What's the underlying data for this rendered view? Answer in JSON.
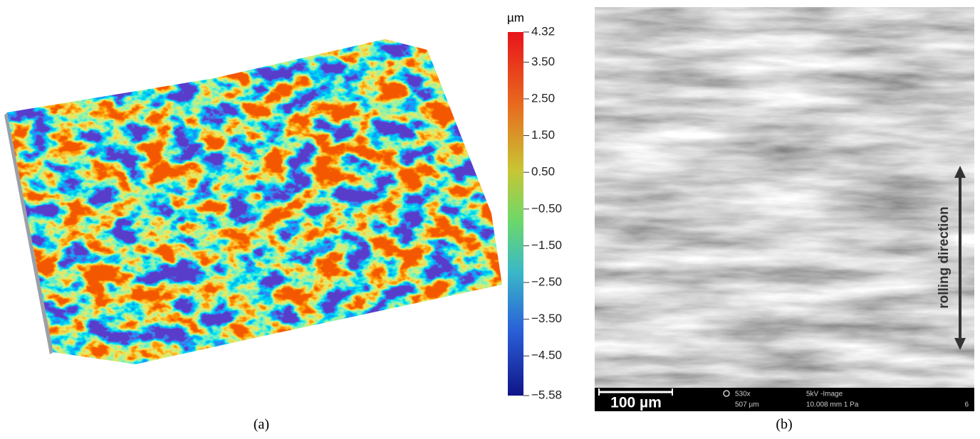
{
  "panel_a": {
    "colorbar": {
      "unit": "µm",
      "range": [
        -5.58,
        4.32
      ],
      "ticks": [
        {
          "value": 4.32,
          "label": "4.32"
        },
        {
          "value": 3.5,
          "label": "3.50"
        },
        {
          "value": 2.5,
          "label": "2.50"
        },
        {
          "value": 1.5,
          "label": "1.50"
        },
        {
          "value": 0.5,
          "label": "0.50"
        },
        {
          "value": -0.5,
          "label": "−0.50"
        },
        {
          "value": -1.5,
          "label": "−1.50"
        },
        {
          "value": -2.5,
          "label": "−2.50"
        },
        {
          "value": -3.5,
          "label": "−3.50"
        },
        {
          "value": -4.5,
          "label": "−4.50"
        },
        {
          "value": -5.58,
          "label": "−5.58"
        }
      ]
    },
    "label": "(a)"
  },
  "panel_b": {
    "scale_bar": "100 µm",
    "annotation": "rolling direction",
    "info": {
      "magnification": "530x",
      "field_width": "507 µm",
      "mode": "5kV -Image",
      "settings": "10.008 mm 1 Pa",
      "index": "6"
    },
    "label": "(b)"
  }
}
